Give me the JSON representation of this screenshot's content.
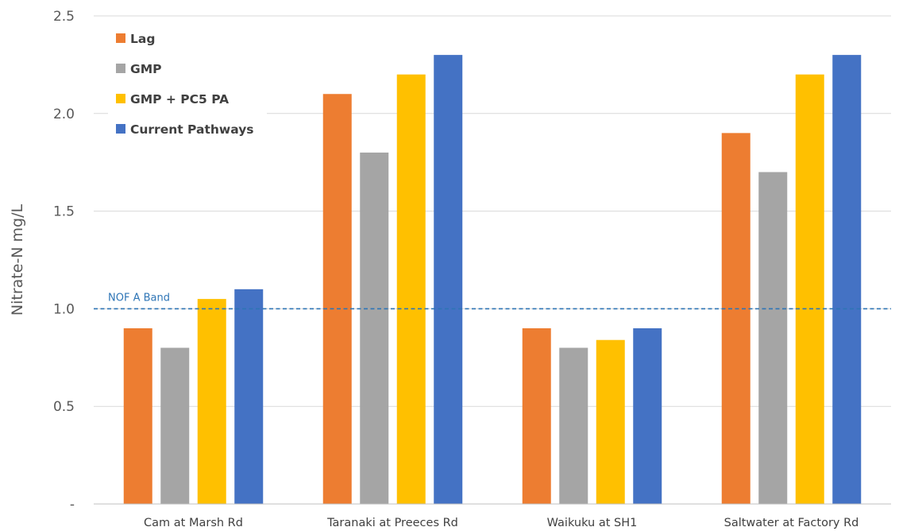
{
  "chart_data": {
    "type": "bar",
    "title": "",
    "xlabel": "",
    "ylabel": "Nitrate-N mg/L",
    "ylim": [
      0,
      2.5
    ],
    "yticks": [
      {
        "value": 0,
        "label": "-"
      },
      {
        "value": 0.5,
        "label": "0.5"
      },
      {
        "value": 1.0,
        "label": "1.0"
      },
      {
        "value": 1.5,
        "label": "1.5"
      },
      {
        "value": 2.0,
        "label": "2.0"
      },
      {
        "value": 2.5,
        "label": "2.5"
      }
    ],
    "grid": true,
    "legend": "top-left",
    "categories": [
      "Cam at Marsh Rd",
      "Taranaki at Preeces Rd",
      "Waikuku at SH1",
      "Saltwater at Factory Rd"
    ],
    "series": [
      {
        "name": "Lag",
        "color": "#ED7D31",
        "values": [
          0.9,
          2.1,
          0.9,
          1.9
        ]
      },
      {
        "name": "GMP",
        "color": "#A5A5A5",
        "values": [
          0.8,
          1.8,
          0.8,
          1.7
        ]
      },
      {
        "name": "GMP + PC5 PA",
        "color": "#FFC000",
        "values": [
          1.05,
          2.2,
          0.84,
          2.2
        ]
      },
      {
        "name": "Current Pathways",
        "color": "#4472C4",
        "values": [
          1.1,
          2.3,
          0.9,
          2.3
        ]
      }
    ],
    "reference_line": {
      "label": "NOF A Band",
      "value": 1.0,
      "color": "#2E75B6"
    }
  }
}
